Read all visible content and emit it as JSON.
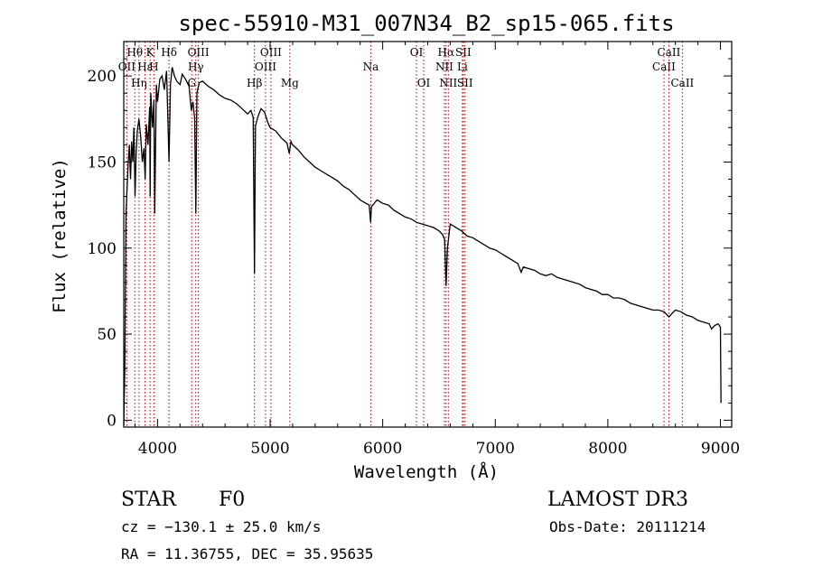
{
  "chart_data": {
    "type": "line",
    "title": "spec-55910-M31_007N34_B2_sp15-065.fits",
    "xlabel": "Wavelength (Å)",
    "ylabel": "Flux (relative)",
    "xlim": [
      3700,
      9100
    ],
    "ylim": [
      -4,
      220
    ],
    "x_ticks": [
      4000,
      5000,
      6000,
      7000,
      8000,
      9000
    ],
    "y_ticks": [
      0,
      50,
      100,
      150,
      200
    ],
    "grid": false,
    "series": [
      {
        "name": "spectrum",
        "x": [
          3700,
          3710,
          3720,
          3730,
          3740,
          3750,
          3760,
          3770,
          3780,
          3790,
          3800,
          3810,
          3820,
          3835,
          3850,
          3865,
          3880,
          3890,
          3900,
          3915,
          3930,
          3934,
          3940,
          3955,
          3968,
          3975,
          3990,
          4000,
          4020,
          4040,
          4060,
          4080,
          4102,
          4115,
          4130,
          4150,
          4170,
          4200,
          4220,
          4250,
          4280,
          4300,
          4315,
          4330,
          4340,
          4350,
          4370,
          4400,
          4450,
          4500,
          4550,
          4600,
          4650,
          4700,
          4750,
          4800,
          4830,
          4850,
          4861,
          4870,
          4890,
          4920,
          4950,
          4980,
          5000,
          5050,
          5100,
          5150,
          5170,
          5185,
          5200,
          5250,
          5300,
          5350,
          5400,
          5450,
          5500,
          5550,
          5600,
          5650,
          5700,
          5750,
          5800,
          5850,
          5880,
          5893,
          5900,
          5950,
          6000,
          6050,
          6100,
          6150,
          6200,
          6250,
          6300,
          6350,
          6400,
          6450,
          6500,
          6530,
          6550,
          6563,
          6575,
          6600,
          6650,
          6700,
          6750,
          6800,
          6850,
          6900,
          6950,
          7000,
          7050,
          7100,
          7150,
          7200,
          7230,
          7250,
          7300,
          7350,
          7400,
          7450,
          7500,
          7550,
          7600,
          7650,
          7700,
          7750,
          7800,
          7850,
          7900,
          7950,
          8000,
          8050,
          8100,
          8150,
          8200,
          8250,
          8300,
          8350,
          8400,
          8450,
          8500,
          8542,
          8570,
          8600,
          8650,
          8700,
          8750,
          8800,
          8850,
          8900,
          8920,
          8950,
          8980,
          9000,
          9005
        ],
        "values": [
          -3,
          30,
          120,
          135,
          150,
          160,
          140,
          162,
          150,
          170,
          130,
          155,
          168,
          175,
          165,
          150,
          158,
          140,
          172,
          160,
          182,
          130,
          190,
          170,
          186,
          120,
          195,
          185,
          198,
          200,
          192,
          203,
          150,
          195,
          205,
          200,
          197,
          195,
          201,
          198,
          194,
          180,
          185,
          175,
          120,
          190,
          196,
          197,
          194,
          192,
          189,
          187,
          186,
          184,
          181,
          178,
          180,
          176,
          85,
          171,
          176,
          181,
          179,
          173,
          170,
          168,
          164,
          161,
          155,
          162,
          160,
          157,
          153,
          150,
          147,
          145,
          143,
          141,
          139,
          136,
          134,
          131,
          128,
          126,
          125,
          115,
          124,
          128,
          126,
          125,
          122,
          120,
          118,
          117,
          115,
          114,
          113,
          112,
          110,
          108,
          105,
          78,
          100,
          114,
          112,
          110,
          107,
          106,
          104,
          102,
          100,
          99,
          97,
          95,
          93,
          91,
          86,
          89,
          88,
          87,
          85,
          84,
          85,
          83,
          82,
          81,
          80,
          79,
          77,
          76,
          75,
          73,
          73,
          71,
          71,
          70,
          68,
          67,
          66,
          65,
          64,
          64,
          63,
          60,
          62,
          64,
          63,
          61,
          60,
          58,
          57,
          56,
          53,
          55,
          56,
          54,
          10
        ]
      }
    ],
    "lines": [
      {
        "label": "Hθ",
        "x": 3798,
        "row": 1
      },
      {
        "label": "OII",
        "x": 3727,
        "row": 2
      },
      {
        "label": "Hη",
        "x": 3835,
        "row": 3
      },
      {
        "label": "Hε",
        "x": 3889,
        "row": 2
      },
      {
        "label": "K",
        "x": 3934,
        "row": 1
      },
      {
        "label": "H",
        "x": 3968,
        "row": 2
      },
      {
        "label": "Hδ",
        "x": 4102,
        "row": 1
      },
      {
        "label": "G",
        "x": 4304,
        "row": 3
      },
      {
        "label": "OIII",
        "x": 4363,
        "row": 1
      },
      {
        "label": "Hγ",
        "x": 4340,
        "row": 2
      },
      {
        "label": "Hβ",
        "x": 4861,
        "row": 3
      },
      {
        "label": "OIII",
        "x": 4959,
        "row": 2
      },
      {
        "label": "OIII",
        "x": 5007,
        "row": 1
      },
      {
        "label": "Mg",
        "x": 5175,
        "row": 3
      },
      {
        "label": "Na",
        "x": 5894,
        "row": 2
      },
      {
        "label": "OI",
        "x": 6300,
        "row": 1
      },
      {
        "label": "OI",
        "x": 6364,
        "row": 3
      },
      {
        "label": "Hα",
        "x": 6563,
        "row": 1
      },
      {
        "label": "NII",
        "x": 6548,
        "row": 2
      },
      {
        "label": "NII",
        "x": 6583,
        "row": 3
      },
      {
        "label": "Li",
        "x": 6708,
        "row": 2
      },
      {
        "label": "SII",
        "x": 6716,
        "row": 1
      },
      {
        "label": "SII",
        "x": 6731,
        "row": 3
      },
      {
        "label": "CaII",
        "x": 8498,
        "row": 2
      },
      {
        "label": "CaII",
        "x": 8542,
        "row": 1
      },
      {
        "label": "CaII",
        "x": 8662,
        "row": 3
      }
    ]
  },
  "info": {
    "object_type": "STAR",
    "subclass": "F0",
    "survey": "LAMOST DR3",
    "velocity": "cz = −130.1 ± 25.0 km/s",
    "obs_date": "Obs-Date: 20111214",
    "coords": "RA =  11.36755, DEC =  35.95635"
  },
  "colors": {
    "line_marker": "#b00000",
    "spectrum": "#000000",
    "axes": "#000000"
  }
}
